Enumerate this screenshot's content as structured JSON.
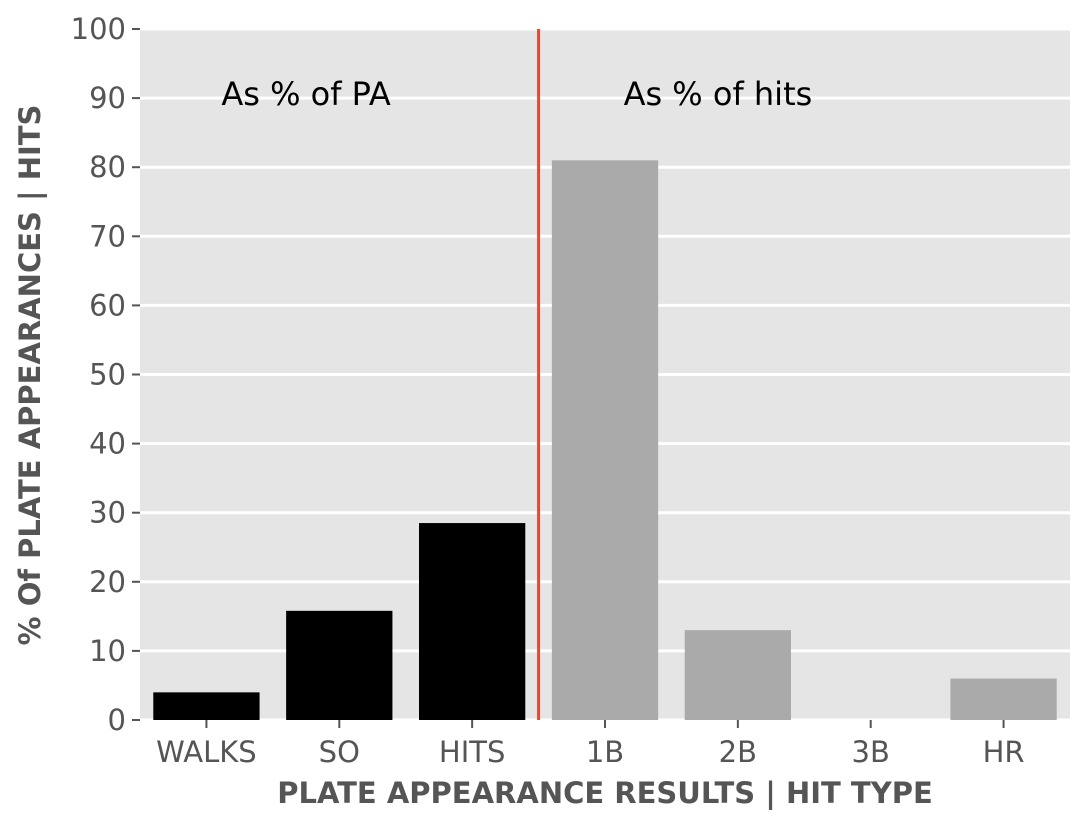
{
  "chart_data": {
    "type": "bar",
    "title": "",
    "xlabel": "PLATE APPEARANCE RESULTS | HIT TYPE",
    "ylabel": "% Of PLATE APPEARANCES | HITS",
    "ylim": [
      0,
      100
    ],
    "yticks": [
      0,
      10,
      20,
      30,
      40,
      50,
      60,
      70,
      80,
      90,
      100
    ],
    "grid": true,
    "categories": [
      "WALKS",
      "SO",
      "HITS",
      "1B",
      "2B",
      "3B",
      "HR"
    ],
    "values": [
      4,
      15.8,
      28.5,
      81,
      13,
      0,
      6
    ],
    "bar_groups": [
      "pa",
      "pa",
      "pa",
      "hits",
      "hits",
      "hits",
      "hits"
    ],
    "annotations": [
      {
        "text": "As % of PA",
        "group": "pa"
      },
      {
        "text": "As % of hits",
        "group": "hits"
      }
    ],
    "divider_after_index": 2,
    "colors": {
      "pa": "#000000",
      "hits": "#aaaaaa",
      "divider": "#e24a33",
      "background": "#e5e5e5",
      "grid": "#ffffff"
    }
  }
}
